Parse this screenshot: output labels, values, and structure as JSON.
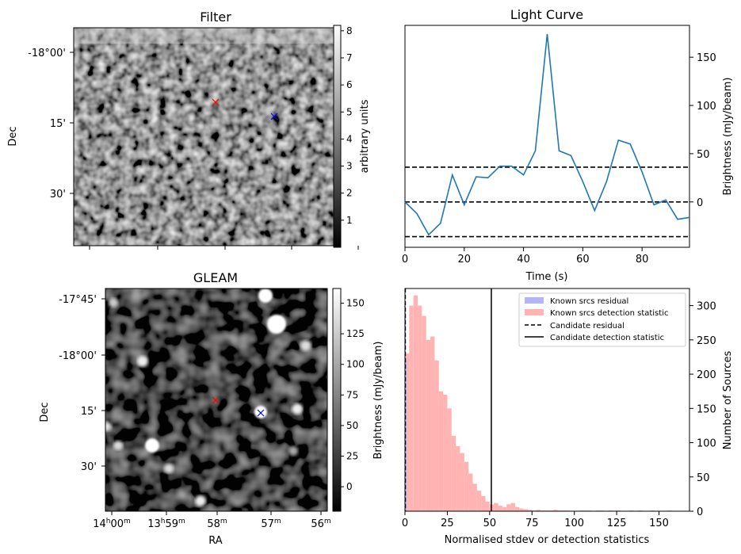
{
  "colors": {
    "line": "#1f77b4",
    "hist_residual": "#b3b3ff",
    "hist_detection": "#ffb3b3",
    "red_marker": "#ff0000",
    "blue_marker": "#0000ff"
  },
  "chart_data": [
    {
      "type": "heatmap",
      "title": "Filter",
      "ylabel": "Dec",
      "ytick_labels": [
        "-18°00'",
        "15'",
        "30'"
      ],
      "colorbar": {
        "label": "arbitrary units",
        "range": [
          0,
          8.2
        ],
        "ticks": [
          "1",
          "2",
          "3",
          "4",
          "5",
          "6",
          "7",
          "8"
        ]
      },
      "markers": [
        {
          "symbol": "×",
          "color": "red"
        },
        {
          "symbol": "×",
          "color": "blue"
        }
      ]
    },
    {
      "type": "heatmap",
      "title": "GLEAM",
      "xlabel": "RA",
      "ylabel": "Dec",
      "xtick_labels": [
        {
          "main": "14",
          "sup": "h",
          "rest": "00",
          "sup2": "m"
        },
        {
          "main": "13",
          "sup": "h",
          "rest": "59",
          "sup2": "m"
        },
        {
          "main": "58",
          "sup": "m",
          "rest": "",
          "sup2": ""
        },
        {
          "main": "57",
          "sup": "m",
          "rest": "",
          "sup2": ""
        },
        {
          "main": "56",
          "sup": "m",
          "rest": "",
          "sup2": ""
        }
      ],
      "ytick_labels": [
        "-17°45'",
        "-18°00'",
        "15'",
        "30'"
      ],
      "colorbar": {
        "label": "Brightness (mJy/beam)",
        "range": [
          -20,
          162
        ],
        "ticks": [
          0,
          25,
          50,
          75,
          100,
          125,
          150
        ]
      },
      "markers": [
        {
          "symbol": "×",
          "color": "red"
        },
        {
          "symbol": "×",
          "color": "blue"
        }
      ]
    },
    {
      "type": "line",
      "title": "Light Curve",
      "xlabel": "Time (s)",
      "ylabel": "Brightness (mJy/beam)",
      "xlim": [
        0,
        96
      ],
      "ylim": [
        -47,
        183
      ],
      "xticks": [
        0,
        20,
        40,
        60,
        80
      ],
      "yticks": [
        0,
        50,
        100,
        150
      ],
      "x": [
        0,
        4,
        8,
        12,
        16,
        20,
        24,
        28,
        32,
        36,
        40,
        44,
        48,
        52,
        56,
        60,
        64,
        68,
        72,
        76,
        80,
        84,
        88,
        92,
        96
      ],
      "y": [
        0,
        -12,
        -34,
        -22,
        28,
        -3,
        26,
        25,
        37,
        37,
        28,
        53,
        174,
        53,
        48,
        21,
        -9,
        21,
        64,
        60,
        31,
        -3,
        2,
        -18,
        -16
      ],
      "hlines": [
        36,
        0,
        -36
      ]
    },
    {
      "type": "bar",
      "subtype": "histogram",
      "xlabel": "Normalised stdev or detection statistics",
      "ylabel": "Number of Sources",
      "xlim": [
        0,
        168
      ],
      "ylim": [
        0,
        325
      ],
      "xticks": [
        0,
        25,
        50,
        75,
        100,
        125,
        150
      ],
      "yticks": [
        0,
        50,
        100,
        150,
        200,
        250,
        300
      ],
      "bin_width": 2.5,
      "residual_bins": [
        {
          "x": 0,
          "value": 300
        },
        {
          "x": 0.5,
          "value": 220
        }
      ],
      "detection_values": [
        230,
        300,
        315,
        300,
        285,
        250,
        255,
        220,
        175,
        170,
        150,
        110,
        95,
        85,
        72,
        55,
        40,
        30,
        22,
        14,
        10,
        12,
        8,
        6,
        10,
        12,
        6,
        4,
        3,
        2,
        1,
        2,
        1,
        1,
        1,
        2,
        1,
        1,
        1,
        0,
        0,
        1,
        1,
        1,
        0,
        1,
        1,
        0,
        1,
        0,
        1,
        0,
        0,
        1,
        0,
        1,
        0,
        0,
        1,
        0,
        0,
        0,
        1,
        0,
        0,
        0
      ],
      "vlines": {
        "candidate_residual": 0.2,
        "candidate_detection": 51
      },
      "legend": [
        {
          "label": "Known srcs residual",
          "kind": "patch",
          "color": "#b3b3ff"
        },
        {
          "label": "Known srcs detection statistic",
          "kind": "patch",
          "color": "#ffb3b3"
        },
        {
          "label": "Candidate residual",
          "kind": "dashed"
        },
        {
          "label": "Candidate detection statistic",
          "kind": "solid"
        }
      ],
      "legend_position": "top-right"
    }
  ]
}
